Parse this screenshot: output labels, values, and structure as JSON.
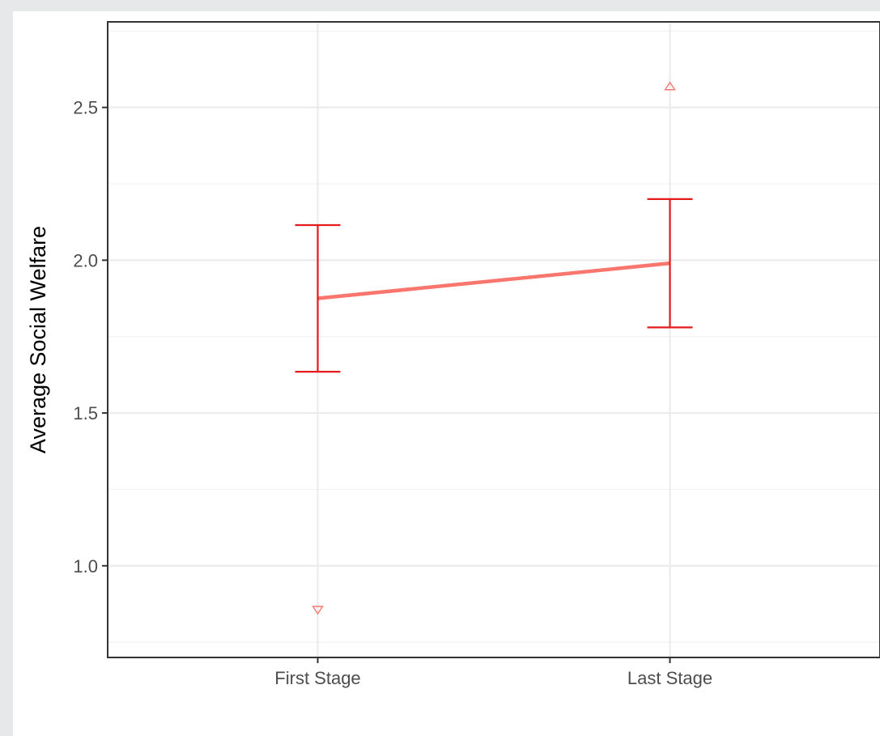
{
  "chart_data": {
    "type": "line",
    "title": "",
    "xlabel": "",
    "ylabel": "Average Social Welfare",
    "categories": [
      "First Stage",
      "Last Stage"
    ],
    "series": [
      {
        "values": [
          1.875,
          1.99
        ],
        "error_low": [
          1.635,
          1.78
        ],
        "error_high": [
          2.115,
          2.2
        ],
        "color": "#f8766d",
        "errorbar_color": "#e41a1c"
      }
    ],
    "extremes": [
      {
        "category": "First Stage",
        "value": 0.855,
        "marker": "triangle-down"
      },
      {
        "category": "Last Stage",
        "value": 2.57,
        "marker": "triangle-up"
      }
    ],
    "ylim": [
      0.7,
      2.78
    ],
    "yticks": [
      1.0,
      1.5,
      2.0,
      2.5
    ],
    "ytick_labels": [
      "1.0",
      "1.5",
      "2.0",
      "2.5"
    ],
    "grid": true,
    "legend": "none"
  },
  "colors": {
    "panel_border": "#333333",
    "grid_major": "#ebebeb",
    "grid_minor": "#f2f2f2",
    "tick": "#333333"
  }
}
